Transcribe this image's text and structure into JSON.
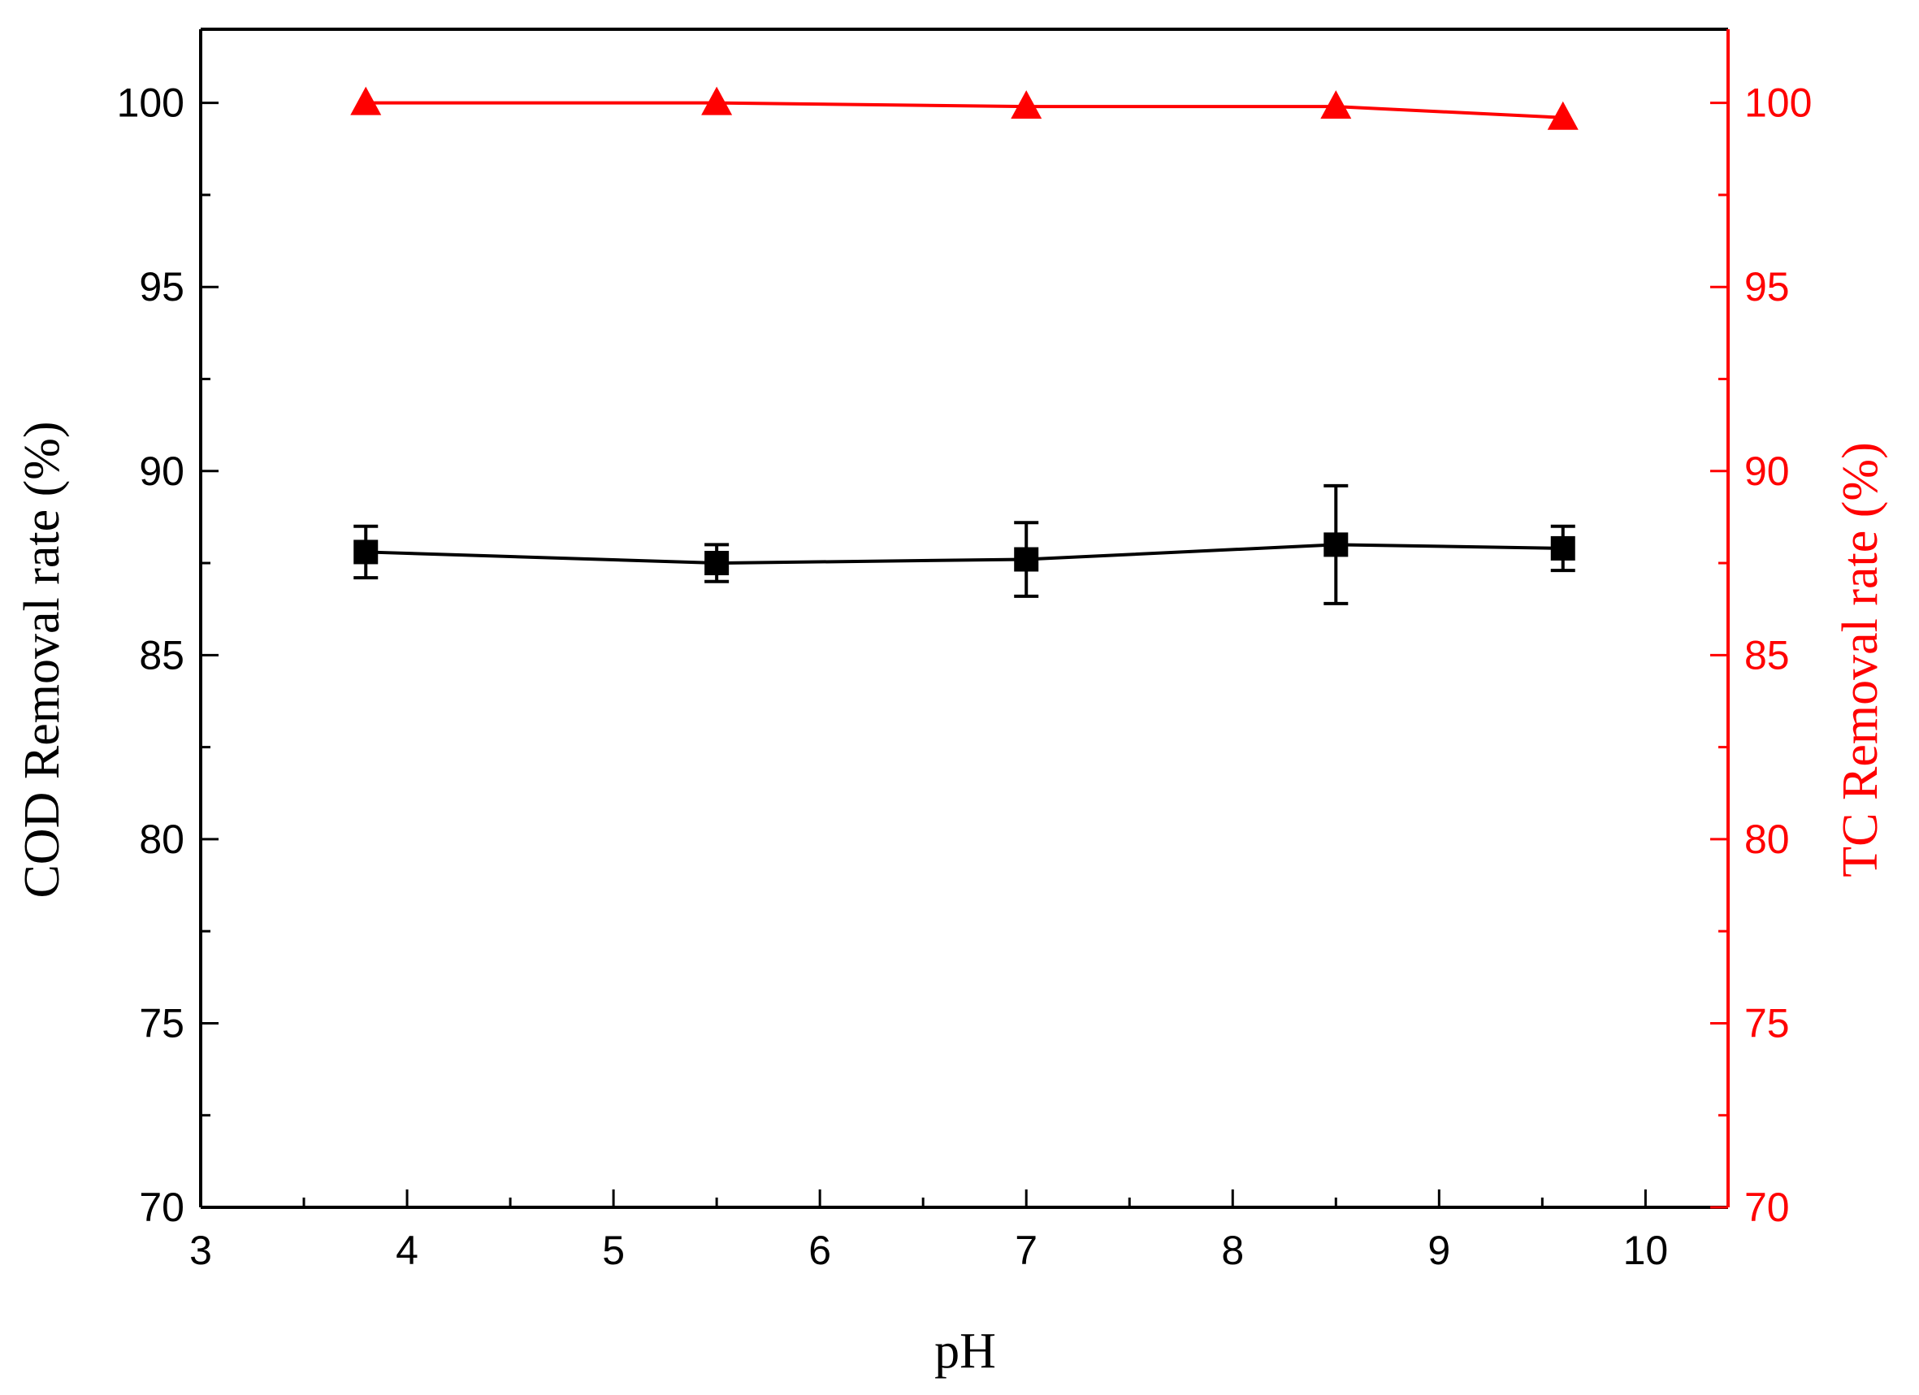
{
  "chart_data": {
    "type": "line",
    "xlabel": "pH",
    "ylabel_left": "COD Removal rate (%)",
    "ylabel_right": "TC Removal rate (%)",
    "xlim": [
      3,
      10.4
    ],
    "ylim_left": [
      70,
      102
    ],
    "ylim_right": [
      70,
      102
    ],
    "x_ticks": [
      3,
      4,
      5,
      6,
      7,
      8,
      9,
      10
    ],
    "x_tick_labels": [
      "3",
      "4",
      "5",
      "6",
      "7",
      "8",
      "9",
      "10"
    ],
    "y_ticks": [
      70,
      75,
      80,
      85,
      90,
      95,
      100
    ],
    "y_tick_labels_left": [
      "70",
      "75",
      "80",
      "85",
      "90",
      "95",
      "100"
    ],
    "y_tick_labels_right": [
      "70",
      "75",
      "80",
      "85",
      "90",
      "95",
      "100"
    ],
    "grid": false,
    "legend": "none",
    "series": [
      {
        "axis": "left",
        "marker": "square",
        "color": "#000000",
        "x": [
          3.8,
          5.5,
          7.0,
          8.5,
          9.6
        ],
        "values": [
          87.8,
          87.5,
          87.6,
          88.0,
          87.9
        ],
        "error": [
          0.7,
          0.5,
          1.0,
          1.6,
          0.6
        ]
      },
      {
        "axis": "right",
        "marker": "triangle",
        "color": "#ff0000",
        "x": [
          3.8,
          5.5,
          7.0,
          8.5,
          9.6
        ],
        "values": [
          100.0,
          100.0,
          99.9,
          99.9,
          99.6
        ]
      }
    ]
  }
}
